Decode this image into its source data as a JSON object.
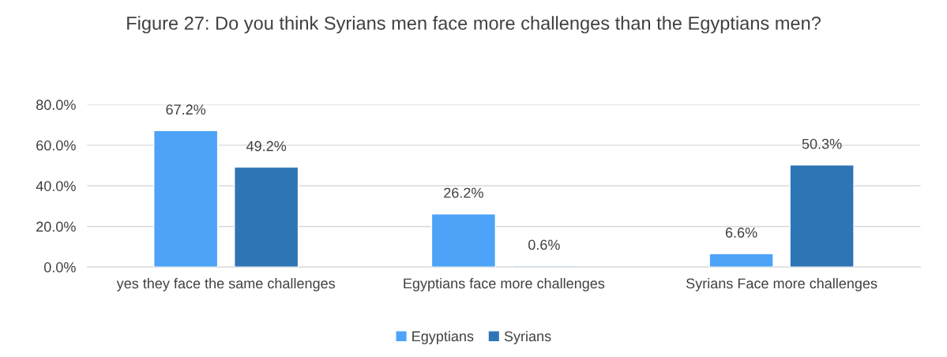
{
  "chart_data": {
    "type": "bar",
    "title": "Figure 27: Do you think Syrians men face more challenges than the Egyptians men?",
    "categories": [
      "yes they face the same challenges",
      "Egyptians face more challenges",
      "Syrians Face more challenges"
    ],
    "series": [
      {
        "name": "Egyptians",
        "color": "#4da3f7",
        "values": [
          67.2,
          26.2,
          6.6
        ],
        "value_labels": [
          "67.2%",
          "26.2%",
          "6.6%"
        ]
      },
      {
        "name": "Syrians",
        "color": "#2e75b6",
        "values": [
          49.2,
          0.6,
          50.3
        ],
        "value_labels": [
          "49.2%",
          "0.6%",
          "50.3%"
        ]
      }
    ],
    "ylim": [
      0,
      80
    ],
    "yticks": [
      {
        "value": 0,
        "label": "0.0%"
      },
      {
        "value": 20,
        "label": "20.0%"
      },
      {
        "value": 40,
        "label": "40.0%"
      },
      {
        "value": 60,
        "label": "60.0%"
      },
      {
        "value": 80,
        "label": "80.0%"
      }
    ],
    "grid": "y",
    "legend": "bottom"
  }
}
